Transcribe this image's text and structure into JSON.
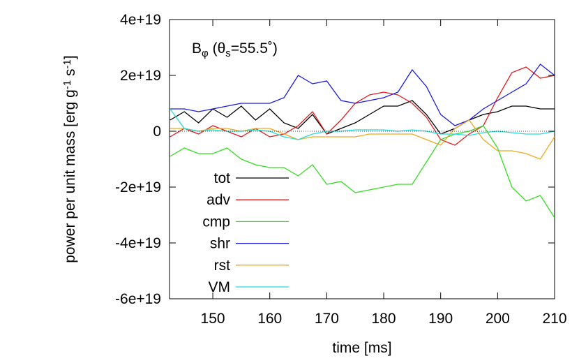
{
  "chart_data": {
    "type": "line",
    "annotation_parts": [
      {
        "text": "B"
      },
      {
        "text": "φ",
        "shift": "sub"
      },
      {
        "text": " (θ"
      },
      {
        "text": "s",
        "shift": "sub"
      },
      {
        "text": "=55.5˚)"
      }
    ],
    "xlabel": "time [ms]",
    "ylabel_parts": [
      {
        "text": "power per unit mass [erg g"
      },
      {
        "text": "-1",
        "shift": "super"
      },
      {
        "text": " s"
      },
      {
        "text": "-1",
        "shift": "super"
      },
      {
        "text": "]"
      }
    ],
    "x": [
      142.5,
      145,
      147.5,
      150,
      152.5,
      155,
      157.5,
      160,
      162.5,
      165,
      167.5,
      170,
      172.5,
      175,
      177.5,
      180,
      182.5,
      185,
      187.5,
      190,
      192.5,
      195,
      197.5,
      200,
      202.5,
      205,
      207.5,
      210
    ],
    "series": [
      {
        "name": "tot",
        "color": "#000000",
        "values": [
          4e+18,
          7e+18,
          3e+18,
          8e+18,
          5e+18,
          9e+18,
          4e+18,
          8e+18,
          3e+18,
          1e+18,
          6e+18,
          -1e+18,
          1e+18,
          3e+18,
          6e+18,
          9e+18,
          9e+18,
          1.1e+19,
          6e+18,
          -1e+18,
          1e+18,
          4e+18,
          6e+18,
          7e+18,
          9e+18,
          9e+18,
          8e+18,
          8e+18
        ]
      },
      {
        "name": "adv",
        "color": "#e41a1c",
        "values": [
          -2e+18,
          1e+18,
          -1e+18,
          2e+18,
          0,
          -2e+18,
          1e+18,
          -2e+18,
          -1e+18,
          2e+18,
          7e+18,
          -1e+18,
          4e+18,
          1e+19,
          1.3e+19,
          1.4e+19,
          1.3e+19,
          1e+19,
          5e+18,
          -3e+18,
          -5e+18,
          -1e+18,
          2e+18,
          1.2e+19,
          2.1e+19,
          2.3e+19,
          1.9e+19,
          2e+19
        ]
      },
      {
        "name": "cmp",
        "color": "#33dd22",
        "values": [
          -9e+18,
          -6e+18,
          -8e+18,
          -8e+18,
          -6e+18,
          -1e+19,
          -1.2e+19,
          -1.3e+19,
          -1.3e+19,
          -1.6e+19,
          -1.2e+19,
          -1.9e+19,
          -1.8e+19,
          -2.2e+19,
          -2.1e+19,
          -2e+19,
          -1.9e+19,
          -1.9e+19,
          -1.1e+19,
          -3e+18,
          -1e+18,
          0,
          2e+18,
          -6e+18,
          -2e+19,
          -2.5e+19,
          -2.3e+19,
          -3.1e+19
        ]
      },
      {
        "name": "shr",
        "color": "#1a1adf",
        "values": [
          8e+18,
          8e+18,
          7e+18,
          8e+18,
          9e+18,
          1e+19,
          1e+19,
          1e+19,
          1.2e+19,
          2e+19,
          1.7e+19,
          1.8e+19,
          1.1e+19,
          1e+19,
          1.1e+19,
          1.2e+19,
          1.4e+19,
          2.2e+19,
          1.6e+19,
          6e+18,
          2e+18,
          4e+18,
          8e+18,
          1.1e+19,
          1.4e+19,
          1.7e+19,
          2.4e+19,
          2e+19
        ]
      },
      {
        "name": "rst",
        "color": "#f0a81e",
        "values": [
          1e+18,
          1e+18,
          0,
          1e+18,
          1e+18,
          0,
          1e+18,
          1e+18,
          -1e+18,
          -3e+18,
          -2e+18,
          -2e+18,
          -2e+18,
          -2e+18,
          -1e+18,
          -1e+18,
          -1e+18,
          -1e+18,
          -3e+18,
          -5e+18,
          1e+18,
          4e+18,
          -3e+18,
          -7e+18,
          -7e+18,
          -8e+18,
          -1e+19,
          -2e+18
        ]
      },
      {
        "name": "VM",
        "color": "#22dddd",
        "values": [
          8e+18,
          1e+18,
          0,
          5e+17,
          0,
          0,
          5e+17,
          0,
          -2e+18,
          -3e+18,
          -1e+18,
          0,
          0,
          5e+17,
          5e+17,
          5e+17,
          0,
          5e+17,
          0,
          -1e+18,
          -1e+18,
          -1.5e+18,
          -5e+17,
          0,
          -5e+17,
          -1e+18,
          -1e+18,
          0
        ]
      }
    ],
    "xlim": [
      142.4,
      210
    ],
    "xticks": [
      150,
      160,
      170,
      180,
      190,
      200,
      210
    ],
    "ylim": [
      -6e+19,
      4e+19
    ],
    "yticks": [
      {
        "value": -6e+19,
        "label": "-6e+19"
      },
      {
        "value": -4e+19,
        "label": "-4e+19"
      },
      {
        "value": -2e+19,
        "label": "-2e+19"
      },
      0,
      {
        "value": 2e+19,
        "label": "2e+19"
      },
      {
        "value": 4e+19,
        "label": "4e+19"
      }
    ],
    "zero_line": true,
    "legend": "lower left"
  }
}
